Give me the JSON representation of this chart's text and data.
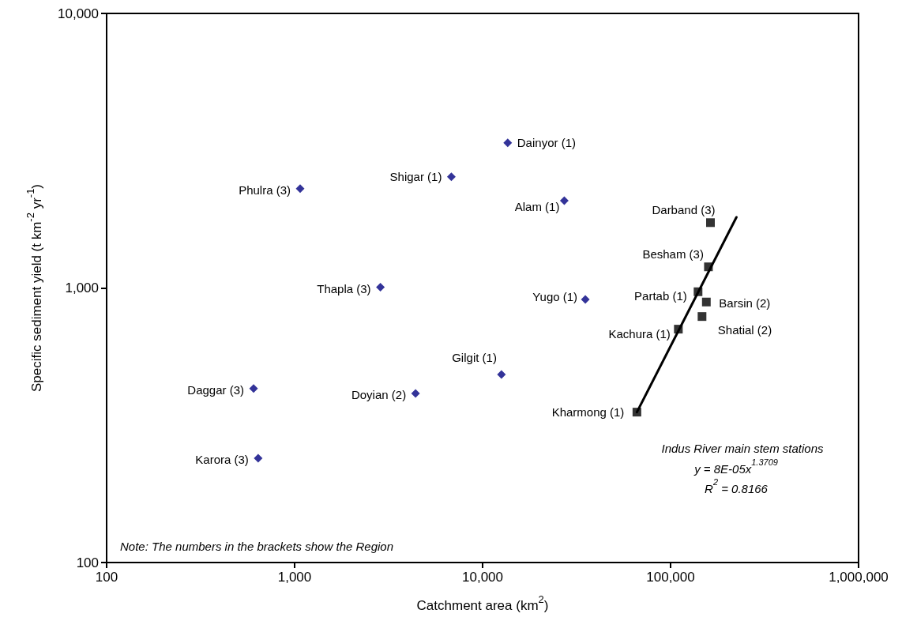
{
  "chart_data": {
    "type": "scatter",
    "xlabel": "Catchment area (km$^{2}$)",
    "ylabel": "Specific sediment yield (t km$^{-2}$ yr$^{-1}$)",
    "log": "xy",
    "xlim": [
      100,
      1000000
    ],
    "xticks": [
      100,
      {
        "value": 1000,
        "label": "1,000"
      },
      {
        "value": 10000,
        "label": "10,000"
      },
      {
        "value": 100000,
        "label": "100,000"
      },
      {
        "value": 1000000,
        "label": "1,000,000"
      }
    ],
    "ylim": [
      100,
      10000
    ],
    "yticks": [
      100,
      {
        "value": 1000,
        "label": "1,000"
      },
      {
        "value": 10000,
        "label": "10,000"
      }
    ],
    "grid": false,
    "series": [
      {
        "type": "scatter",
        "color": "#000080",
        "marker": "diamond",
        "x": [
          13600,
          6820,
          1070,
          27200,
          2860,
          35200,
          12600,
          605,
          4400,
          640
        ],
        "values": [
          3380,
          2540,
          2300,
          2080,
          1006,
          908,
          484,
          430,
          413,
          240
        ]
      },
      {
        "type": "scatter",
        "color": "#000000",
        "marker": "square",
        "x": [
          163000,
          159000,
          140000,
          155000,
          147000,
          110000,
          66200
        ],
        "values": [
          1730,
          1194,
          969,
          889,
          787,
          708,
          353
        ]
      },
      {
        "type": "line",
        "color": "#000000",
        "marker": "none",
        "line_style": "solid",
        "x": [
          66200,
          224000
        ],
        "values": [
          353,
          1810
        ]
      }
    ],
    "annotations": [
      {
        "text": "Dainyor (1)",
        "x": 13600,
        "y": 3380
      },
      {
        "text": "Shigar (1)",
        "x": 6820,
        "y": 2540
      },
      {
        "text": "Phulra (3)",
        "x": 1070,
        "y": 2300
      },
      {
        "text": "Alam (1)",
        "x": 27200,
        "y": 2080
      },
      {
        "text": "Thapla (3)",
        "x": 2860,
        "y": 1006
      },
      {
        "text": "Yugo (1)",
        "x": 35200,
        "y": 908
      },
      {
        "text": "Gilgit (1)",
        "x": 12600,
        "y": 484
      },
      {
        "text": "Daggar (3)",
        "x": 605,
        "y": 430
      },
      {
        "text": "Doyian (2)",
        "x": 4400,
        "y": 413
      },
      {
        "text": "Karora (3)",
        "x": 640,
        "y": 240
      },
      {
        "text": "Darband (3)",
        "x": 163000,
        "y": 1730
      },
      {
        "text": "Besham (3)",
        "x": 159000,
        "y": 1194
      },
      {
        "text": "Partab (1)",
        "x": 140000,
        "y": 969
      },
      {
        "text": "Barsin (2)",
        "x": 155000,
        "y": 889
      },
      {
        "text": "Shatial (2)",
        "x": 147000,
        "y": 787
      },
      {
        "text": "Kachura (1)",
        "x": 110000,
        "y": 708
      },
      {
        "text": "Kharmong (1)",
        "x": 66200,
        "y": 353
      },
      "Indus River main stem stations",
      "y = 8E-05x$^{1.3709}$",
      "R$^{2}$ = 0.8166",
      "Note: The numbers in the brackets show the Region"
    ]
  }
}
